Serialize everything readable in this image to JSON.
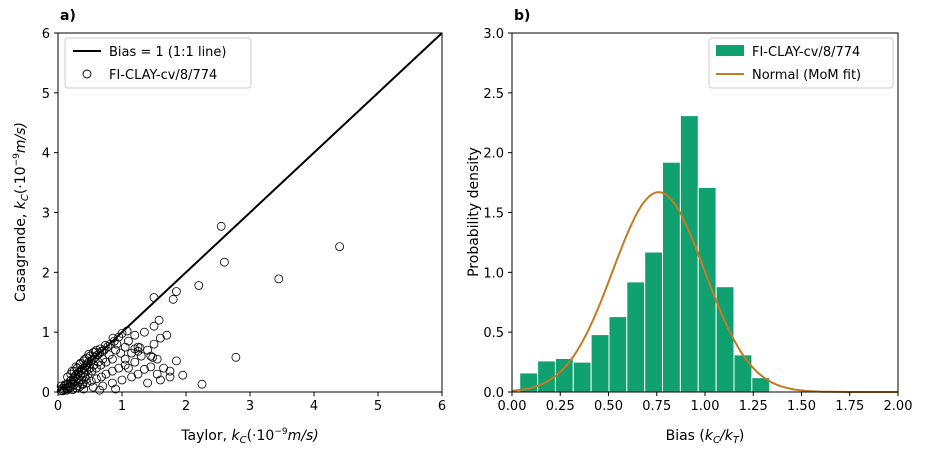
{
  "chart_data": [
    {
      "panel": "a)",
      "type": "scatter",
      "xlabel_main": "Taylor, ",
      "xlabel_sym": "k",
      "xlabel_sub": "C",
      "xlabel_unit": "(·10",
      "xlabel_exp": "−9",
      "xlabel_tail": "m/s)",
      "ylabel_main": "Casagrande, ",
      "ylabel_sym": "k",
      "ylabel_sub": "C",
      "ylabel_unit": "(·10",
      "ylabel_exp": "−9",
      "ylabel_tail": "m/s)",
      "xlim": [
        0,
        6
      ],
      "ylim": [
        0,
        6
      ],
      "xticks": [
        "0",
        "1",
        "2",
        "3",
        "4",
        "5",
        "6"
      ],
      "yticks": [
        "0",
        "1",
        "2",
        "3",
        "4",
        "5",
        "6"
      ],
      "legend": [
        "Bias = 1 (1:1 line)",
        "FI-CLAY-cv/8/774"
      ],
      "legend_loc": "upper-left",
      "line": {
        "x": [
          0,
          6
        ],
        "y": [
          0,
          6
        ]
      },
      "points": [
        [
          0.05,
          0.02
        ],
        [
          0.07,
          0.06
        ],
        [
          0.09,
          0.04
        ],
        [
          0.1,
          0.1
        ],
        [
          0.12,
          0.07
        ],
        [
          0.13,
          0.13
        ],
        [
          0.15,
          0.05
        ],
        [
          0.16,
          0.14
        ],
        [
          0.18,
          0.1
        ],
        [
          0.19,
          0.18
        ],
        [
          0.2,
          0.08
        ],
        [
          0.21,
          0.2
        ],
        [
          0.22,
          0.15
        ],
        [
          0.24,
          0.22
        ],
        [
          0.25,
          0.12
        ],
        [
          0.26,
          0.25
        ],
        [
          0.27,
          0.18
        ],
        [
          0.28,
          0.28
        ],
        [
          0.3,
          0.22
        ],
        [
          0.31,
          0.3
        ],
        [
          0.32,
          0.16
        ],
        [
          0.33,
          0.33
        ],
        [
          0.35,
          0.27
        ],
        [
          0.36,
          0.36
        ],
        [
          0.37,
          0.2
        ],
        [
          0.38,
          0.38
        ],
        [
          0.4,
          0.31
        ],
        [
          0.41,
          0.4
        ],
        [
          0.42,
          0.25
        ],
        [
          0.43,
          0.44
        ],
        [
          0.45,
          0.36
        ],
        [
          0.46,
          0.46
        ],
        [
          0.47,
          0.3
        ],
        [
          0.48,
          0.5
        ],
        [
          0.5,
          0.4
        ],
        [
          0.52,
          0.52
        ],
        [
          0.53,
          0.35
        ],
        [
          0.55,
          0.55
        ],
        [
          0.56,
          0.45
        ],
        [
          0.58,
          0.58
        ],
        [
          0.6,
          0.4
        ],
        [
          0.62,
          0.62
        ],
        [
          0.63,
          0.5
        ],
        [
          0.65,
          0.65
        ],
        [
          0.67,
          0.45
        ],
        [
          0.68,
          0.68
        ],
        [
          0.7,
          0.55
        ],
        [
          0.72,
          0.7
        ],
        [
          0.75,
          0.5
        ],
        [
          0.78,
          0.76
        ],
        [
          0.8,
          0.62
        ],
        [
          0.82,
          0.8
        ],
        [
          0.85,
          0.55
        ],
        [
          0.88,
          0.85
        ],
        [
          0.9,
          0.7
        ],
        [
          0.95,
          0.92
        ],
        [
          0.98,
          0.65
        ],
        [
          1.0,
          0.98
        ],
        [
          1.05,
          0.75
        ],
        [
          1.08,
          1.02
        ],
        [
          0.15,
          0.25
        ],
        [
          0.2,
          0.3
        ],
        [
          0.25,
          0.35
        ],
        [
          0.3,
          0.4
        ],
        [
          0.35,
          0.48
        ],
        [
          0.4,
          0.52
        ],
        [
          0.45,
          0.57
        ],
        [
          0.5,
          0.6
        ],
        [
          0.55,
          0.66
        ],
        [
          0.6,
          0.7
        ],
        [
          0.22,
          0.35
        ],
        [
          0.28,
          0.42
        ],
        [
          0.34,
          0.46
        ],
        [
          0.42,
          0.55
        ],
        [
          0.48,
          0.63
        ],
        [
          0.58,
          0.67
        ],
        [
          0.66,
          0.72
        ],
        [
          0.74,
          0.78
        ],
        [
          0.86,
          0.9
        ],
        [
          0.92,
          0.8
        ],
        [
          0.3,
          0.1
        ],
        [
          0.38,
          0.12
        ],
        [
          0.45,
          0.15
        ],
        [
          0.52,
          0.18
        ],
        [
          0.6,
          0.22
        ],
        [
          0.68,
          0.25
        ],
        [
          0.75,
          0.3
        ],
        [
          0.85,
          0.35
        ],
        [
          0.95,
          0.4
        ],
        [
          1.05,
          0.45
        ],
        [
          0.4,
          0.05
        ],
        [
          0.55,
          0.08
        ],
        [
          0.7,
          0.1
        ],
        [
          0.85,
          0.15
        ],
        [
          1.0,
          0.2
        ],
        [
          1.15,
          0.25
        ],
        [
          1.25,
          0.3
        ],
        [
          1.35,
          0.38
        ],
        [
          1.45,
          0.42
        ],
        [
          1.55,
          0.3
        ],
        [
          0.65,
          0.03
        ],
        [
          0.9,
          0.05
        ],
        [
          1.1,
          0.4
        ],
        [
          1.2,
          0.5
        ],
        [
          1.3,
          0.6
        ],
        [
          1.4,
          0.7
        ],
        [
          1.5,
          0.8
        ],
        [
          1.6,
          0.9
        ],
        [
          1.35,
          1.0
        ],
        [
          1.5,
          1.1
        ],
        [
          1.05,
          0.55
        ],
        [
          1.15,
          0.65
        ],
        [
          1.25,
          0.75
        ],
        [
          1.1,
          0.85
        ],
        [
          1.2,
          0.95
        ],
        [
          1.45,
          0.6
        ],
        [
          1.55,
          0.55
        ],
        [
          1.65,
          0.4
        ],
        [
          1.75,
          0.25
        ],
        [
          1.7,
          0.95
        ],
        [
          1.2,
          0.72
        ],
        [
          1.25,
          0.68
        ],
        [
          1.28,
          0.74
        ],
        [
          1.6,
          0.2
        ],
        [
          1.4,
          0.15
        ],
        [
          1.48,
          0.58
        ],
        [
          1.58,
          1.2
        ],
        [
          1.75,
          0.35
        ],
        [
          1.85,
          0.52
        ],
        [
          1.95,
          0.28
        ],
        [
          1.5,
          1.58
        ],
        [
          1.8,
          1.55
        ],
        [
          1.85,
          1.68
        ],
        [
          2.2,
          1.78
        ],
        [
          2.25,
          0.13
        ],
        [
          2.55,
          2.77
        ],
        [
          2.6,
          2.17
        ],
        [
          2.78,
          0.58
        ],
        [
          3.45,
          1.89
        ],
        [
          4.4,
          2.43
        ],
        [
          0.05,
          0.1
        ],
        [
          0.08,
          0.02
        ],
        [
          0.11,
          0.12
        ],
        [
          0.14,
          0.03
        ],
        [
          0.17,
          0.08
        ],
        [
          0.23,
          0.04
        ],
        [
          0.29,
          0.07
        ],
        [
          0.34,
          0.09
        ],
        [
          0.39,
          0.14
        ],
        [
          0.44,
          0.21
        ]
      ]
    },
    {
      "panel": "b)",
      "type": "bar",
      "xlabel_main": "Bias (",
      "xlabel_sym1": "k",
      "xlabel_sub1": "C",
      "xlabel_slash": "/",
      "xlabel_sym2": "k",
      "xlabel_sub2": "T",
      "xlabel_tail": ")",
      "ylabel": "Probability density",
      "xlim": [
        0,
        2
      ],
      "ylim": [
        0,
        3
      ],
      "xticks": [
        "0.00",
        "0.25",
        "0.50",
        "0.75",
        "1.00",
        "1.25",
        "1.50",
        "1.75",
        "2.00"
      ],
      "yticks": [
        "0.0",
        "0.5",
        "1.0",
        "1.5",
        "2.0",
        "2.5",
        "3.0"
      ],
      "legend": [
        "FI-CLAY-cv/8/774",
        "Normal (MoM fit)"
      ],
      "legend_loc": "upper-right",
      "bin_edges": [
        0.04,
        0.1325,
        0.225,
        0.3175,
        0.41,
        0.5025,
        0.595,
        0.6875,
        0.78,
        0.8725,
        0.965,
        1.0575,
        1.15,
        1.2425,
        1.335
      ],
      "values": [
        0.16,
        0.26,
        0.28,
        0.25,
        0.48,
        0.63,
        0.92,
        1.17,
        1.92,
        2.31,
        1.71,
        0.88,
        0.31,
        0.12
      ],
      "normal_fit": {
        "mean": 0.76,
        "std": 0.238,
        "peak": 1.67
      },
      "colors": {
        "bar": "#11a070",
        "curve": "#c47a23"
      }
    }
  ]
}
